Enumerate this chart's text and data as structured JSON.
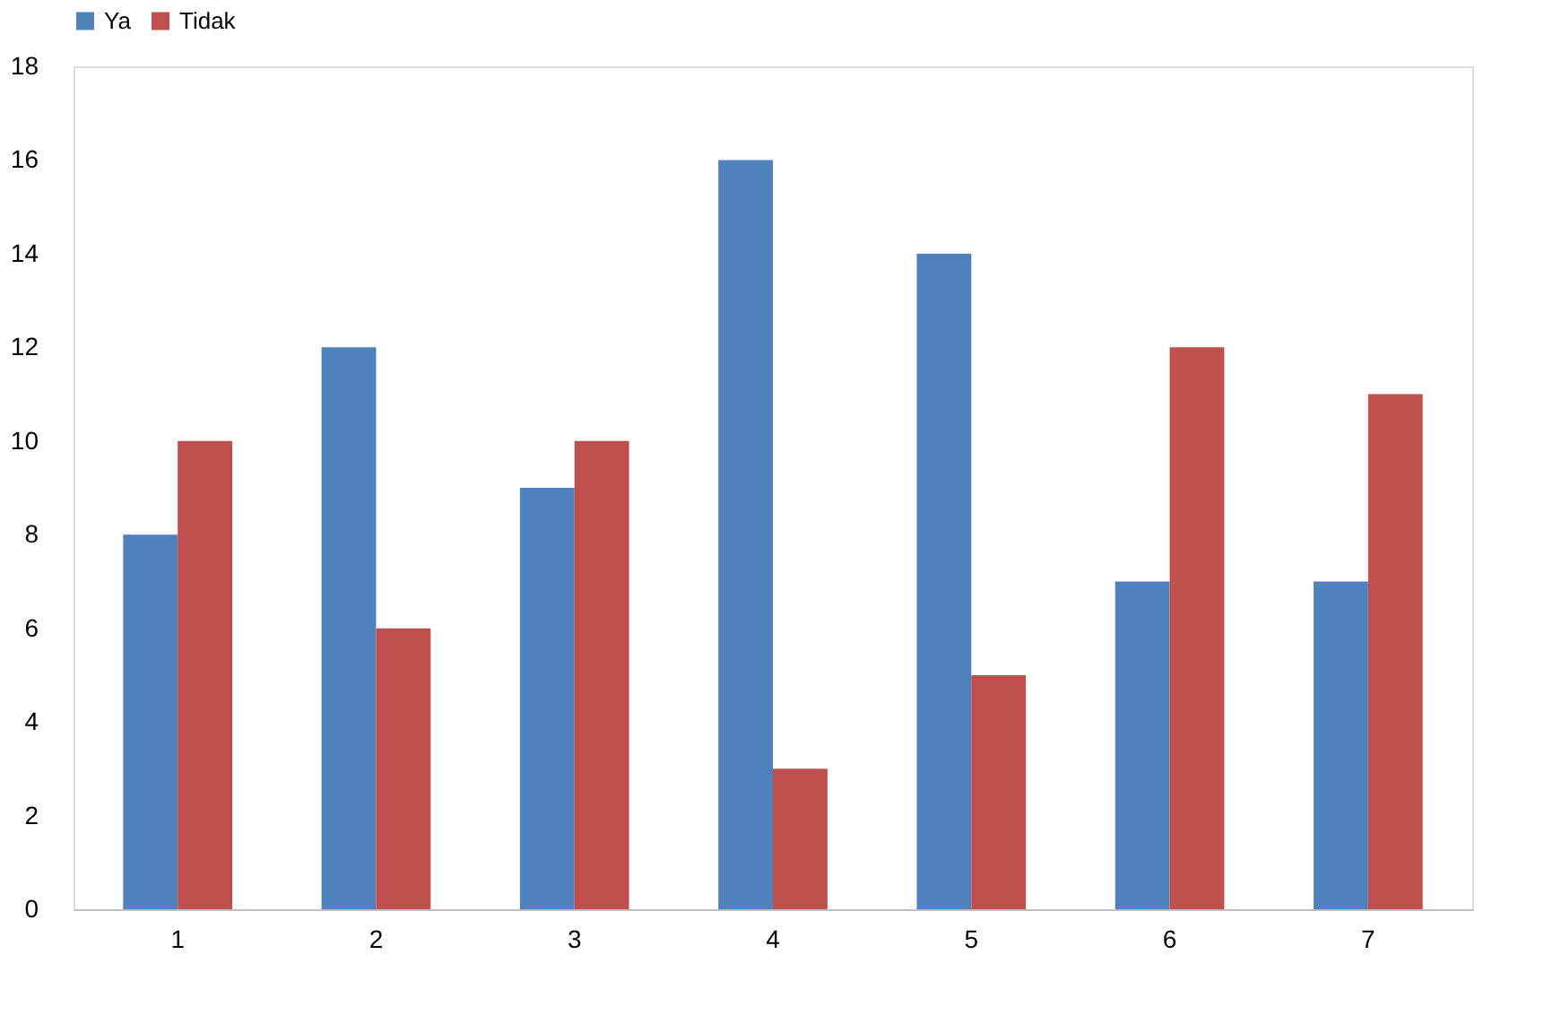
{
  "chart_data": {
    "type": "bar",
    "categories": [
      "1",
      "2",
      "3",
      "4",
      "5",
      "6",
      "7"
    ],
    "series": [
      {
        "name": "Ya",
        "color": "#4f81bd",
        "values": [
          8,
          12,
          9,
          16,
          14,
          7,
          7
        ]
      },
      {
        "name": "Tidak",
        "color": "#c0504d",
        "values": [
          10,
          6,
          10,
          3,
          5,
          12,
          11
        ]
      }
    ],
    "ylim": [
      0,
      18
    ],
    "yticks": [
      0,
      2,
      4,
      6,
      8,
      10,
      12,
      14,
      16,
      18
    ],
    "grid": false,
    "legend": "top"
  }
}
